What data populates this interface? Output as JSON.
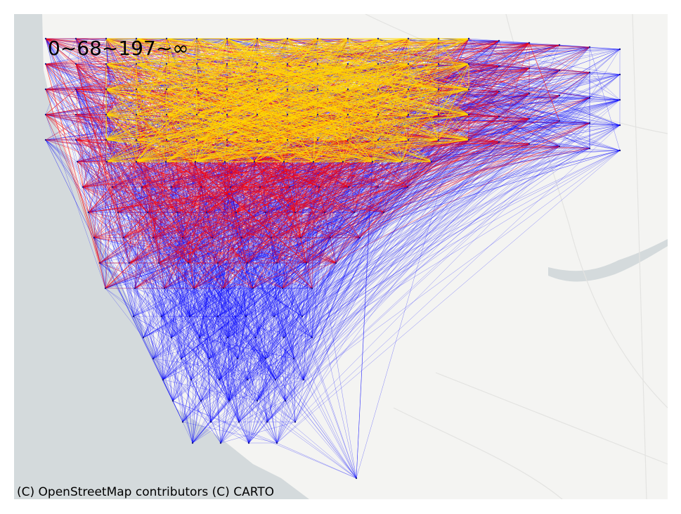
{
  "legend": {
    "bins_label": "0~68~197~∞"
  },
  "attribution": "(C) OpenStreetMap contributors (C) CARTO",
  "colors": {
    "sea": "#d4dadc",
    "land": "#f4f4f2",
    "river": "#d4dadc",
    "road": "#e6e6e4",
    "low_flow": "#0000ff",
    "mid_flow": "#ff0000",
    "high_flow": "#ffd700"
  },
  "flow_bins": [
    {
      "range": "0~68",
      "color": "#0000ff"
    },
    {
      "range": "68~197",
      "color": "#ff0000"
    },
    {
      "range": "197~∞",
      "color": "#ffd700"
    }
  ]
}
